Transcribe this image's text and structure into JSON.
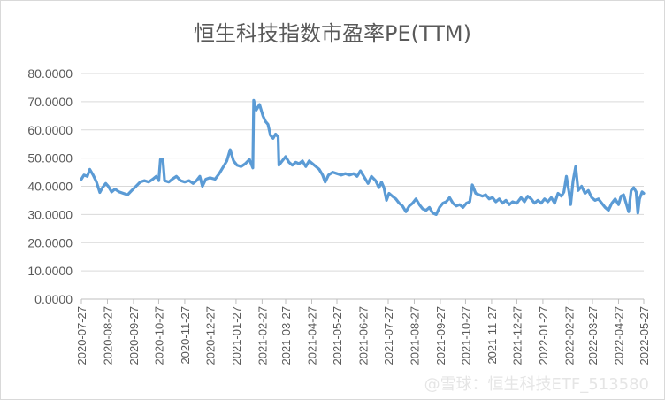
{
  "chart_data": {
    "type": "line",
    "title": "恒生科技指数市盈率PE(TTM)",
    "xlabel": "",
    "ylabel": "",
    "ylim": [
      0,
      80
    ],
    "yticks": [
      "0.0000",
      "10.0000",
      "20.0000",
      "30.0000",
      "40.0000",
      "50.0000",
      "60.0000",
      "70.0000",
      "80.0000"
    ],
    "grid": true,
    "legend": "none",
    "x_start": "2020-07-27",
    "x_end": "2022-05-27",
    "xticks": [
      "2020-07-27",
      "2020-08-27",
      "2020-09-27",
      "2020-10-27",
      "2020-11-27",
      "2020-12-27",
      "2021-01-27",
      "2021-02-27",
      "2021-03-27",
      "2021-04-27",
      "2021-05-27",
      "2021-06-27",
      "2021-07-27",
      "2021-08-27",
      "2021-09-27",
      "2021-10-27",
      "2021-11-27",
      "2021-12-27",
      "2022-01-27",
      "2022-02-27",
      "2022-03-27",
      "2022-04-27",
      "2022-05-27"
    ],
    "series": [
      {
        "color": "#5b9bd5",
        "points": [
          [
            "2020-07-27",
            42.5
          ],
          [
            "2020-07-30",
            44.0
          ],
          [
            "2020-08-03",
            43.5
          ],
          [
            "2020-08-06",
            46.0
          ],
          [
            "2020-08-10",
            44.0
          ],
          [
            "2020-08-14",
            41.5
          ],
          [
            "2020-08-18",
            37.8
          ],
          [
            "2020-08-21",
            39.5
          ],
          [
            "2020-08-25",
            41.0
          ],
          [
            "2020-08-28",
            40.0
          ],
          [
            "2020-09-01",
            38.0
          ],
          [
            "2020-09-05",
            39.0
          ],
          [
            "2020-09-10",
            38.0
          ],
          [
            "2020-09-15",
            37.5
          ],
          [
            "2020-09-20",
            37.0
          ],
          [
            "2020-09-25",
            38.5
          ],
          [
            "2020-09-30",
            40.0
          ],
          [
            "2020-10-05",
            41.5
          ],
          [
            "2020-10-10",
            42.0
          ],
          [
            "2020-10-15",
            41.5
          ],
          [
            "2020-10-20",
            42.5
          ],
          [
            "2020-10-24",
            43.5
          ],
          [
            "2020-10-27",
            42.0
          ],
          [
            "2020-10-29",
            49.5
          ],
          [
            "2020-11-01",
            49.5
          ],
          [
            "2020-11-03",
            42.0
          ],
          [
            "2020-11-08",
            41.5
          ],
          [
            "2020-11-12",
            42.5
          ],
          [
            "2020-11-17",
            43.5
          ],
          [
            "2020-11-22",
            42.0
          ],
          [
            "2020-11-27",
            41.5
          ],
          [
            "2020-12-02",
            42.0
          ],
          [
            "2020-12-07",
            41.0
          ],
          [
            "2020-12-11",
            42.0
          ],
          [
            "2020-12-15",
            43.5
          ],
          [
            "2020-12-18",
            40.0
          ],
          [
            "2020-12-22",
            42.5
          ],
          [
            "2020-12-27",
            43.0
          ],
          [
            "2021-01-02",
            42.5
          ],
          [
            "2021-01-07",
            44.5
          ],
          [
            "2021-01-12",
            47.0
          ],
          [
            "2021-01-16",
            49.0
          ],
          [
            "2021-01-20",
            53.0
          ],
          [
            "2021-01-24",
            49.0
          ],
          [
            "2021-01-28",
            47.5
          ],
          [
            "2021-02-02",
            47.0
          ],
          [
            "2021-02-07",
            48.0
          ],
          [
            "2021-02-12",
            49.5
          ],
          [
            "2021-02-16",
            46.5
          ],
          [
            "2021-02-17",
            70.5
          ],
          [
            "2021-02-20",
            67.0
          ],
          [
            "2021-02-24",
            69.0
          ],
          [
            "2021-02-28",
            65.0
          ],
          [
            "2021-03-03",
            63.0
          ],
          [
            "2021-03-06",
            62.0
          ],
          [
            "2021-03-09",
            58.0
          ],
          [
            "2021-03-12",
            57.0
          ],
          [
            "2021-03-15",
            58.5
          ],
          [
            "2021-03-18",
            57.5
          ],
          [
            "2021-03-19",
            47.5
          ],
          [
            "2021-03-23",
            49.0
          ],
          [
            "2021-03-27",
            50.5
          ],
          [
            "2021-03-31",
            48.5
          ],
          [
            "2021-04-04",
            47.5
          ],
          [
            "2021-04-08",
            48.5
          ],
          [
            "2021-04-12",
            48.0
          ],
          [
            "2021-04-16",
            49.0
          ],
          [
            "2021-04-20",
            47.0
          ],
          [
            "2021-04-24",
            49.0
          ],
          [
            "2021-04-28",
            48.0
          ],
          [
            "2021-05-02",
            47.0
          ],
          [
            "2021-05-06",
            46.0
          ],
          [
            "2021-05-10",
            44.0
          ],
          [
            "2021-05-13",
            41.5
          ],
          [
            "2021-05-17",
            44.0
          ],
          [
            "2021-05-22",
            45.0
          ],
          [
            "2021-05-27",
            44.5
          ],
          [
            "2021-06-01",
            44.0
          ],
          [
            "2021-06-06",
            44.5
          ],
          [
            "2021-06-11",
            44.0
          ],
          [
            "2021-06-16",
            44.5
          ],
          [
            "2021-06-20",
            43.5
          ],
          [
            "2021-06-24",
            45.5
          ],
          [
            "2021-06-28",
            43.5
          ],
          [
            "2021-07-03",
            41.0
          ],
          [
            "2021-07-07",
            43.5
          ],
          [
            "2021-07-12",
            42.0
          ],
          [
            "2021-07-16",
            39.5
          ],
          [
            "2021-07-19",
            41.5
          ],
          [
            "2021-07-22",
            39.5
          ],
          [
            "2021-07-25",
            35.0
          ],
          [
            "2021-07-28",
            37.5
          ],
          [
            "2021-08-01",
            36.5
          ],
          [
            "2021-08-05",
            35.5
          ],
          [
            "2021-08-09",
            34.0
          ],
          [
            "2021-08-13",
            33.0
          ],
          [
            "2021-08-17",
            31.0
          ],
          [
            "2021-08-21",
            33.0
          ],
          [
            "2021-08-25",
            34.0
          ],
          [
            "2021-08-29",
            35.5
          ],
          [
            "2021-09-02",
            33.5
          ],
          [
            "2021-09-06",
            32.0
          ],
          [
            "2021-09-10",
            31.5
          ],
          [
            "2021-09-14",
            32.5
          ],
          [
            "2021-09-18",
            30.5
          ],
          [
            "2021-09-22",
            30.0
          ],
          [
            "2021-09-26",
            32.5
          ],
          [
            "2021-09-30",
            34.0
          ],
          [
            "2021-10-04",
            34.5
          ],
          [
            "2021-10-08",
            36.0
          ],
          [
            "2021-10-12",
            34.0
          ],
          [
            "2021-10-16",
            33.0
          ],
          [
            "2021-10-20",
            33.5
          ],
          [
            "2021-10-24",
            32.5
          ],
          [
            "2021-10-28",
            34.0
          ],
          [
            "2021-11-01",
            34.5
          ],
          [
            "2021-11-04",
            40.5
          ],
          [
            "2021-11-08",
            37.5
          ],
          [
            "2021-11-12",
            37.0
          ],
          [
            "2021-11-16",
            36.5
          ],
          [
            "2021-11-20",
            37.0
          ],
          [
            "2021-11-24",
            35.5
          ],
          [
            "2021-11-28",
            36.0
          ],
          [
            "2021-12-02",
            34.5
          ],
          [
            "2021-12-06",
            35.5
          ],
          [
            "2021-12-10",
            34.0
          ],
          [
            "2021-12-14",
            35.0
          ],
          [
            "2021-12-18",
            33.5
          ],
          [
            "2021-12-22",
            34.5
          ],
          [
            "2021-12-27",
            34.0
          ],
          [
            "2022-01-01",
            36.0
          ],
          [
            "2022-01-05",
            34.5
          ],
          [
            "2022-01-09",
            36.5
          ],
          [
            "2022-01-13",
            35.5
          ],
          [
            "2022-01-17",
            34.0
          ],
          [
            "2022-01-21",
            35.0
          ],
          [
            "2022-01-25",
            34.0
          ],
          [
            "2022-01-29",
            35.5
          ],
          [
            "2022-02-02",
            34.5
          ],
          [
            "2022-02-06",
            36.0
          ],
          [
            "2022-02-10",
            34.0
          ],
          [
            "2022-02-14",
            37.5
          ],
          [
            "2022-02-18",
            36.5
          ],
          [
            "2022-02-21",
            38.0
          ],
          [
            "2022-02-24",
            43.5
          ],
          [
            "2022-02-27",
            38.0
          ],
          [
            "2022-03-01",
            33.5
          ],
          [
            "2022-03-04",
            42.0
          ],
          [
            "2022-03-07",
            47.0
          ],
          [
            "2022-03-10",
            38.5
          ],
          [
            "2022-03-14",
            40.0
          ],
          [
            "2022-03-18",
            37.5
          ],
          [
            "2022-03-22",
            38.5
          ],
          [
            "2022-03-26",
            36.0
          ],
          [
            "2022-03-30",
            35.0
          ],
          [
            "2022-04-03",
            35.5
          ],
          [
            "2022-04-07",
            34.0
          ],
          [
            "2022-04-11",
            32.5
          ],
          [
            "2022-04-15",
            31.5
          ],
          [
            "2022-04-19",
            34.0
          ],
          [
            "2022-04-23",
            35.5
          ],
          [
            "2022-04-27",
            33.5
          ],
          [
            "2022-04-30",
            36.5
          ],
          [
            "2022-05-03",
            37.0
          ],
          [
            "2022-05-06",
            34.0
          ],
          [
            "2022-05-09",
            31.0
          ],
          [
            "2022-05-12",
            38.5
          ],
          [
            "2022-05-15",
            39.5
          ],
          [
            "2022-05-18",
            38.0
          ],
          [
            "2022-05-20",
            30.5
          ],
          [
            "2022-05-22",
            35.5
          ],
          [
            "2022-05-25",
            38.0
          ],
          [
            "2022-05-27",
            37.5
          ],
          [
            "2022-05-31",
            37.5
          ]
        ]
      }
    ]
  },
  "watermark": "@雪球：恒生科技ETF_513580"
}
